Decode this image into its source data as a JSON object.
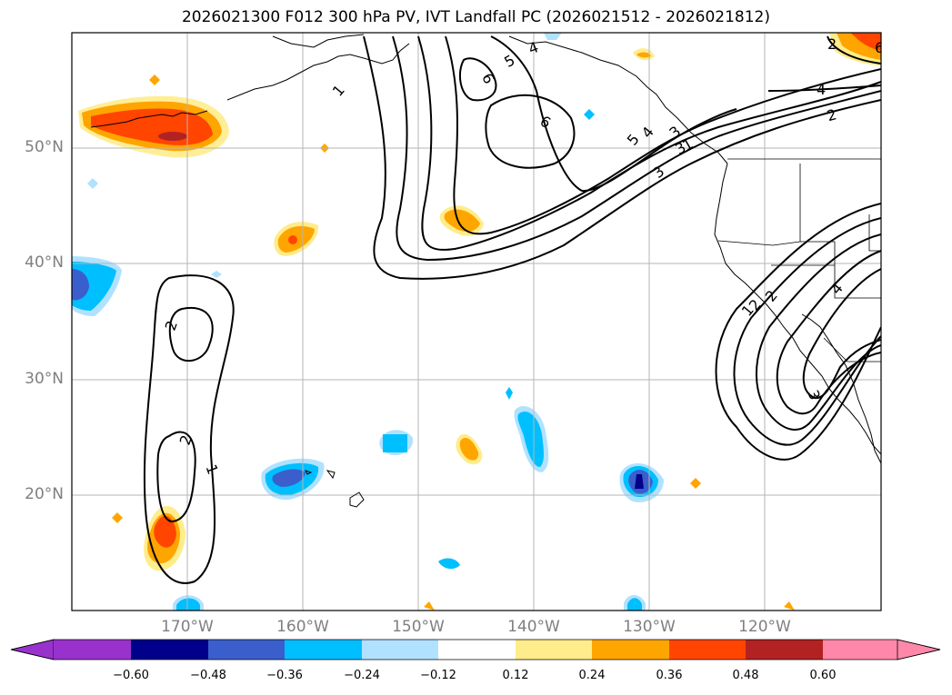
{
  "title": "2026021300 F012 300 hPa PV, IVT Landfall PC (2026021512 - 2026021812)",
  "map": {
    "lon_range": [
      -180,
      -110
    ],
    "lat_range": [
      10,
      60
    ],
    "lat_labels": [
      "50°N",
      "40°N",
      "30°N",
      "20°N"
    ],
    "lon_labels": [
      "170°W",
      "160°W",
      "150°W",
      "140°W",
      "130°W",
      "120°W"
    ],
    "contour_labels": [
      "1",
      "2",
      "3",
      "4",
      "5",
      "6",
      "6",
      "5",
      "4",
      "3",
      "2",
      "1",
      "2",
      "2",
      "1",
      "1",
      "2",
      "3",
      "4",
      "6",
      "4",
      "2",
      "3"
    ]
  },
  "colorbar": {
    "ticks": [
      "−0.60",
      "−0.48",
      "−0.36",
      "−0.24",
      "−0.12",
      "0.12",
      "0.24",
      "0.36",
      "0.48",
      "0.60"
    ],
    "colors": [
      "#9932cc",
      "#00008b",
      "#3a5fcd",
      "#00bfff",
      "#b0e2ff",
      "#ffffff",
      "#ffec8b",
      "#ffa500",
      "#ff4500",
      "#b22222",
      "#ff88aa"
    ]
  }
}
